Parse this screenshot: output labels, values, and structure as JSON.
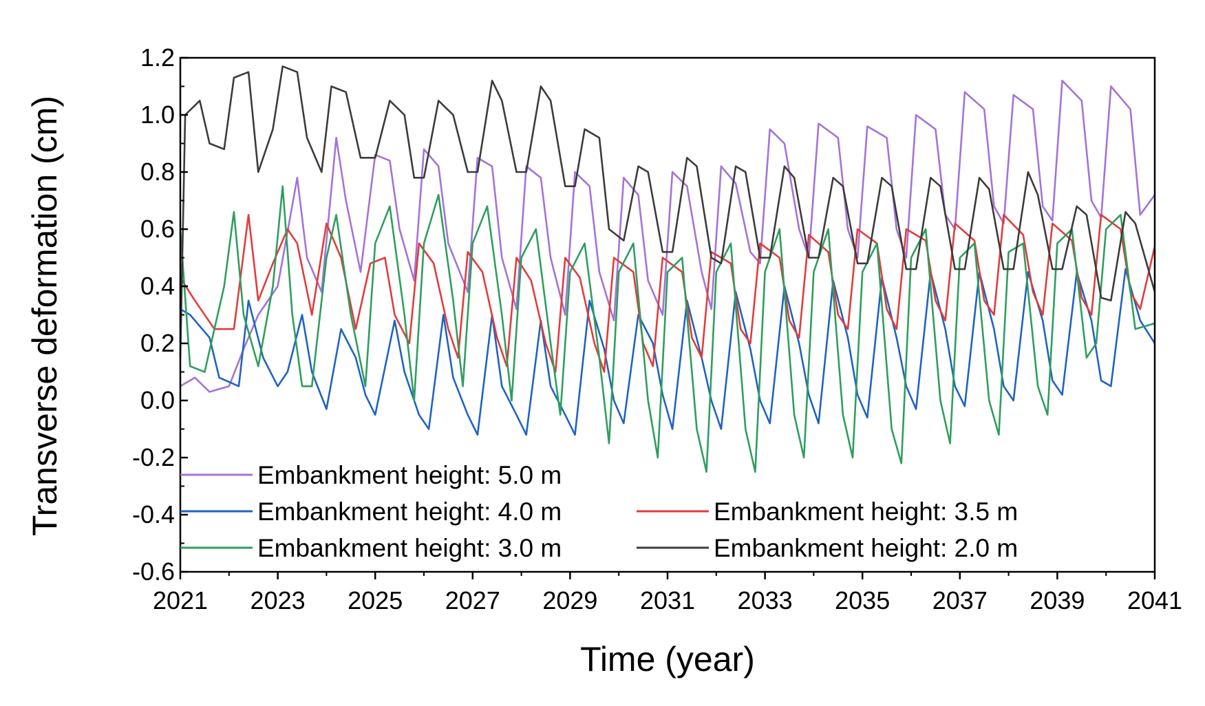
{
  "chart_data": {
    "type": "line",
    "title": "",
    "xlabel": "Time (year)",
    "ylabel": "Transverse deformation (cm)",
    "xlim": [
      2021,
      2041
    ],
    "ylim": [
      -0.6,
      1.2
    ],
    "xticks": [
      2021,
      2023,
      2025,
      2027,
      2029,
      2031,
      2033,
      2035,
      2037,
      2039,
      2041
    ],
    "yticks": [
      1.2,
      1.0,
      0.8,
      0.6,
      0.4,
      0.2,
      0.0,
      -0.2,
      -0.4,
      -0.6
    ],
    "ytick_labels": [
      "1.2",
      "1.0",
      "0.8",
      "0.6",
      "0.4",
      "0.2",
      "0.0",
      "-0.2",
      "-0.4",
      "-0.6"
    ],
    "grid": false,
    "legend_position": "bottom-left",
    "series": [
      {
        "name": "Embankment height: 5.0 m",
        "color": "#a473d6",
        "x": [
          2021.0,
          2021.3,
          2021.6,
          2022.0,
          2022.3,
          2022.6,
          2023.0,
          2023.4,
          2023.6,
          2023.9,
          2024.2,
          2024.4,
          2024.7,
          2025.0,
          2025.3,
          2025.5,
          2025.8,
          2026.0,
          2026.3,
          2026.5,
          2026.9,
          2027.1,
          2027.4,
          2027.6,
          2027.9,
          2028.1,
          2028.4,
          2028.6,
          2028.9,
          2029.1,
          2029.4,
          2029.6,
          2029.9,
          2030.1,
          2030.4,
          2030.6,
          2030.9,
          2031.1,
          2031.4,
          2031.7,
          2031.9,
          2032.1,
          2032.4,
          2032.7,
          2032.9,
          2033.1,
          2033.4,
          2033.7,
          2033.9,
          2034.1,
          2034.5,
          2034.7,
          2034.9,
          2035.1,
          2035.5,
          2035.7,
          2035.9,
          2036.1,
          2036.5,
          2036.7,
          2036.9,
          2037.1,
          2037.5,
          2037.7,
          2037.9,
          2038.1,
          2038.5,
          2038.7,
          2038.9,
          2039.1,
          2039.5,
          2039.7,
          2039.9,
          2040.1,
          2040.5,
          2040.7,
          2041.0
        ],
        "values": [
          0.05,
          0.08,
          0.03,
          0.05,
          0.18,
          0.3,
          0.4,
          0.78,
          0.5,
          0.38,
          0.92,
          0.7,
          0.45,
          0.86,
          0.84,
          0.6,
          0.42,
          0.88,
          0.82,
          0.55,
          0.38,
          0.85,
          0.82,
          0.5,
          0.32,
          0.82,
          0.78,
          0.5,
          0.3,
          0.8,
          0.75,
          0.45,
          0.28,
          0.78,
          0.72,
          0.42,
          0.3,
          0.8,
          0.75,
          0.45,
          0.32,
          0.82,
          0.76,
          0.52,
          0.48,
          0.95,
          0.9,
          0.6,
          0.5,
          0.97,
          0.92,
          0.6,
          0.5,
          0.96,
          0.92,
          0.6,
          0.5,
          1.0,
          0.95,
          0.65,
          0.6,
          1.08,
          1.02,
          0.68,
          0.62,
          1.07,
          1.02,
          0.68,
          0.63,
          1.12,
          1.05,
          0.7,
          0.64,
          1.1,
          1.02,
          0.65,
          0.72
        ]
      },
      {
        "name": "Embankment height: 4.0 m",
        "color": "#1f63c2",
        "x": [
          2021.0,
          2021.2,
          2021.6,
          2021.8,
          2022.2,
          2022.4,
          2022.7,
          2023.0,
          2023.2,
          2023.5,
          2023.7,
          2024.0,
          2024.3,
          2024.6,
          2024.8,
          2025.0,
          2025.4,
          2025.6,
          2025.9,
          2026.1,
          2026.4,
          2026.6,
          2026.9,
          2027.1,
          2027.4,
          2027.6,
          2027.9,
          2028.1,
          2028.4,
          2028.6,
          2028.9,
          2029.1,
          2029.4,
          2029.7,
          2029.9,
          2030.1,
          2030.4,
          2030.7,
          2030.9,
          2031.1,
          2031.4,
          2031.7,
          2031.9,
          2032.1,
          2032.4,
          2032.7,
          2032.9,
          2033.1,
          2033.4,
          2033.7,
          2033.9,
          2034.1,
          2034.4,
          2034.7,
          2034.9,
          2035.1,
          2035.4,
          2035.7,
          2035.9,
          2036.1,
          2036.4,
          2036.7,
          2036.9,
          2037.1,
          2037.4,
          2037.7,
          2037.9,
          2038.1,
          2038.4,
          2038.7,
          2038.9,
          2039.1,
          2039.4,
          2039.7,
          2039.9,
          2040.1,
          2040.4,
          2040.7,
          2041.0
        ],
        "values": [
          0.32,
          0.3,
          0.22,
          0.08,
          0.05,
          0.35,
          0.15,
          0.05,
          0.1,
          0.3,
          0.1,
          -0.03,
          0.25,
          0.15,
          0.02,
          -0.05,
          0.28,
          0.1,
          -0.05,
          -0.1,
          0.3,
          0.08,
          -0.05,
          -0.12,
          0.3,
          0.05,
          -0.05,
          -0.12,
          0.28,
          0.05,
          -0.05,
          -0.12,
          0.35,
          0.18,
          0.0,
          -0.08,
          0.3,
          0.2,
          0.02,
          -0.1,
          0.35,
          0.15,
          0.0,
          -0.1,
          0.38,
          0.18,
          0.0,
          -0.08,
          0.4,
          0.2,
          0.02,
          -0.08,
          0.42,
          0.22,
          0.02,
          -0.06,
          0.43,
          0.22,
          0.05,
          -0.03,
          0.45,
          0.25,
          0.05,
          -0.02,
          0.45,
          0.25,
          0.05,
          0.0,
          0.45,
          0.28,
          0.07,
          0.02,
          0.45,
          0.28,
          0.07,
          0.05,
          0.46,
          0.28,
          0.2
        ]
      },
      {
        "name": "Embankment height: 3.5 m",
        "color": "#e03c3c",
        "x": [
          2021.0,
          2021.3,
          2021.7,
          2022.1,
          2022.4,
          2022.6,
          2022.9,
          2023.2,
          2023.4,
          2023.7,
          2024.0,
          2024.3,
          2024.6,
          2024.9,
          2025.2,
          2025.4,
          2025.7,
          2025.9,
          2026.2,
          2026.5,
          2026.7,
          2026.9,
          2027.2,
          2027.5,
          2027.7,
          2027.9,
          2028.2,
          2028.5,
          2028.7,
          2028.9,
          2029.2,
          2029.5,
          2029.7,
          2029.9,
          2030.3,
          2030.5,
          2030.7,
          2030.9,
          2031.3,
          2031.5,
          2031.7,
          2031.9,
          2032.3,
          2032.5,
          2032.7,
          2032.9,
          2033.3,
          2033.5,
          2033.7,
          2033.9,
          2034.3,
          2034.5,
          2034.7,
          2034.9,
          2035.3,
          2035.5,
          2035.7,
          2035.9,
          2036.3,
          2036.5,
          2036.7,
          2036.9,
          2037.3,
          2037.5,
          2037.7,
          2037.9,
          2038.3,
          2038.5,
          2038.7,
          2038.9,
          2039.3,
          2039.5,
          2039.7,
          2039.9,
          2040.3,
          2040.5,
          2040.7,
          2041.0
        ],
        "values": [
          0.43,
          0.35,
          0.25,
          0.25,
          0.65,
          0.35,
          0.48,
          0.6,
          0.55,
          0.3,
          0.62,
          0.5,
          0.25,
          0.48,
          0.5,
          0.3,
          0.2,
          0.55,
          0.48,
          0.25,
          0.15,
          0.52,
          0.45,
          0.22,
          0.12,
          0.5,
          0.42,
          0.2,
          0.1,
          0.5,
          0.43,
          0.2,
          0.1,
          0.5,
          0.45,
          0.2,
          0.12,
          0.5,
          0.45,
          0.22,
          0.15,
          0.52,
          0.48,
          0.25,
          0.2,
          0.55,
          0.5,
          0.28,
          0.22,
          0.58,
          0.52,
          0.3,
          0.25,
          0.6,
          0.55,
          0.32,
          0.25,
          0.6,
          0.56,
          0.35,
          0.28,
          0.62,
          0.56,
          0.35,
          0.3,
          0.65,
          0.58,
          0.38,
          0.3,
          0.62,
          0.56,
          0.36,
          0.3,
          0.65,
          0.6,
          0.38,
          0.32,
          0.54
        ]
      },
      {
        "name": "Embankment height: 3.0 m",
        "color": "#2e9e5e",
        "x": [
          2021.0,
          2021.2,
          2021.5,
          2021.9,
          2022.1,
          2022.3,
          2022.6,
          2022.9,
          2023.1,
          2023.3,
          2023.5,
          2023.7,
          2024.0,
          2024.2,
          2024.5,
          2024.8,
          2025.0,
          2025.3,
          2025.6,
          2025.8,
          2026.0,
          2026.3,
          2026.6,
          2026.8,
          2027.0,
          2027.3,
          2027.6,
          2027.8,
          2028.0,
          2028.3,
          2028.6,
          2028.8,
          2029.0,
          2029.3,
          2029.6,
          2029.8,
          2030.0,
          2030.3,
          2030.6,
          2030.8,
          2031.0,
          2031.3,
          2031.6,
          2031.8,
          2032.0,
          2032.3,
          2032.6,
          2032.8,
          2033.0,
          2033.3,
          2033.6,
          2033.8,
          2034.0,
          2034.3,
          2034.6,
          2034.8,
          2035.0,
          2035.3,
          2035.6,
          2035.8,
          2036.0,
          2036.3,
          2036.6,
          2036.8,
          2037.0,
          2037.3,
          2037.6,
          2037.8,
          2038.0,
          2038.3,
          2038.6,
          2038.8,
          2039.0,
          2039.3,
          2039.6,
          2039.8,
          2040.0,
          2040.3,
          2040.6,
          2041.0
        ],
        "values": [
          0.6,
          0.12,
          0.1,
          0.4,
          0.66,
          0.3,
          0.12,
          0.4,
          0.75,
          0.3,
          0.05,
          0.05,
          0.5,
          0.65,
          0.3,
          0.05,
          0.55,
          0.68,
          0.3,
          0.0,
          0.55,
          0.72,
          0.35,
          0.05,
          0.55,
          0.68,
          0.3,
          0.0,
          0.5,
          0.6,
          0.2,
          -0.05,
          0.45,
          0.55,
          0.15,
          -0.15,
          0.45,
          0.55,
          0.0,
          -0.2,
          0.45,
          0.5,
          -0.1,
          -0.25,
          0.45,
          0.55,
          -0.1,
          -0.25,
          0.45,
          0.6,
          -0.05,
          -0.2,
          0.45,
          0.6,
          -0.05,
          -0.2,
          0.45,
          0.55,
          -0.1,
          -0.22,
          0.5,
          0.6,
          0.0,
          -0.15,
          0.5,
          0.55,
          0.0,
          -0.12,
          0.52,
          0.55,
          0.05,
          -0.05,
          0.55,
          0.6,
          0.15,
          0.2,
          0.6,
          0.65,
          0.25,
          0.27
        ]
      },
      {
        "name": "Embankment height: 2.0 m",
        "color": "#3b3b3b",
        "x": [
          2021.0,
          2021.1,
          2021.4,
          2021.6,
          2021.9,
          2022.1,
          2022.4,
          2022.6,
          2022.9,
          2023.1,
          2023.4,
          2023.6,
          2023.9,
          2024.1,
          2024.4,
          2024.7,
          2025.0,
          2025.3,
          2025.6,
          2025.8,
          2026.0,
          2026.3,
          2026.6,
          2026.9,
          2027.1,
          2027.4,
          2027.6,
          2027.9,
          2028.1,
          2028.4,
          2028.6,
          2028.9,
          2029.1,
          2029.3,
          2029.6,
          2029.8,
          2030.1,
          2030.4,
          2030.6,
          2030.9,
          2031.1,
          2031.4,
          2031.6,
          2031.9,
          2032.1,
          2032.4,
          2032.6,
          2032.9,
          2033.1,
          2033.4,
          2033.6,
          2033.9,
          2034.1,
          2034.4,
          2034.6,
          2034.9,
          2035.1,
          2035.4,
          2035.6,
          2035.9,
          2036.1,
          2036.4,
          2036.6,
          2036.9,
          2037.1,
          2037.4,
          2037.6,
          2037.9,
          2038.1,
          2038.4,
          2038.6,
          2038.9,
          2039.1,
          2039.4,
          2039.6,
          2039.9,
          2040.1,
          2040.4,
          2040.6,
          2041.0
        ],
        "values": [
          0.15,
          1.0,
          1.05,
          0.9,
          0.88,
          1.13,
          1.15,
          0.8,
          0.95,
          1.17,
          1.15,
          0.92,
          0.8,
          1.1,
          1.08,
          0.85,
          0.85,
          1.05,
          1.0,
          0.78,
          0.78,
          1.05,
          1.0,
          0.8,
          0.8,
          1.12,
          1.05,
          0.8,
          0.8,
          1.1,
          1.05,
          0.75,
          0.75,
          0.95,
          0.92,
          0.6,
          0.56,
          0.82,
          0.8,
          0.52,
          0.52,
          0.85,
          0.82,
          0.5,
          0.48,
          0.82,
          0.8,
          0.5,
          0.5,
          0.82,
          0.78,
          0.5,
          0.5,
          0.78,
          0.75,
          0.48,
          0.48,
          0.78,
          0.75,
          0.46,
          0.46,
          0.78,
          0.75,
          0.46,
          0.46,
          0.78,
          0.74,
          0.46,
          0.46,
          0.8,
          0.72,
          0.46,
          0.46,
          0.68,
          0.65,
          0.36,
          0.35,
          0.66,
          0.62,
          0.38
        ]
      }
    ]
  }
}
